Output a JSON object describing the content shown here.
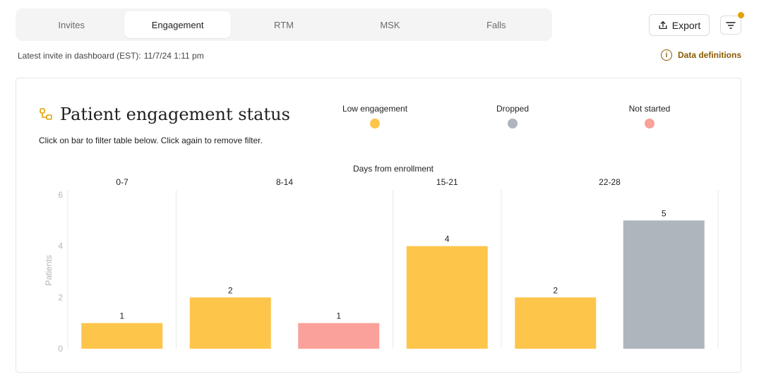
{
  "tabs": [
    {
      "label": "Invites",
      "active": false
    },
    {
      "label": "Engagement",
      "active": true
    },
    {
      "label": "RTM",
      "active": false
    },
    {
      "label": "MSK",
      "active": false
    },
    {
      "label": "Falls",
      "active": false
    }
  ],
  "toolbar": {
    "export_label": "Export",
    "export_icon": "upload-icon",
    "filter_icon": "filter-lines-icon",
    "filter_dot_color": "#e3a008"
  },
  "status": {
    "latest_label": "Latest invite in dashboard (EST):",
    "latest_value": "11/7/24 1:11 pm"
  },
  "definitions": {
    "label": "Data definitions",
    "icon": "info-icon",
    "color": "#8a5a00"
  },
  "card": {
    "title": "Patient engagement status",
    "icon": "flow-nodes-icon",
    "hint": "Click on bar to filter table below. Click again to remove filter."
  },
  "chart_data": {
    "type": "bar",
    "title": "Patient engagement status",
    "xlabel": "Days from enrollment",
    "ylabel": "Patients",
    "ylim": [
      0,
      6
    ],
    "yticks": [
      0,
      2,
      4,
      6
    ],
    "legend_position": "top",
    "grid": false,
    "legend": [
      {
        "name": "Low engagement",
        "color": "#fec54b"
      },
      {
        "name": "Dropped",
        "color": "#aeb5bc"
      },
      {
        "name": "Not started",
        "color": "#f9a19a"
      }
    ],
    "groups": [
      {
        "label": "0-7",
        "bars": [
          {
            "series": "Low engagement",
            "value": 1
          }
        ]
      },
      {
        "label": "8-14",
        "bars": [
          {
            "series": "Low engagement",
            "value": 2
          },
          {
            "series": "Not started",
            "value": 1
          }
        ]
      },
      {
        "label": "15-21",
        "bars": [
          {
            "series": "Low engagement",
            "value": 4
          }
        ]
      },
      {
        "label": "22-28",
        "bars": [
          {
            "series": "Low engagement",
            "value": 2
          },
          {
            "series": "Dropped",
            "value": 5
          }
        ]
      }
    ]
  }
}
